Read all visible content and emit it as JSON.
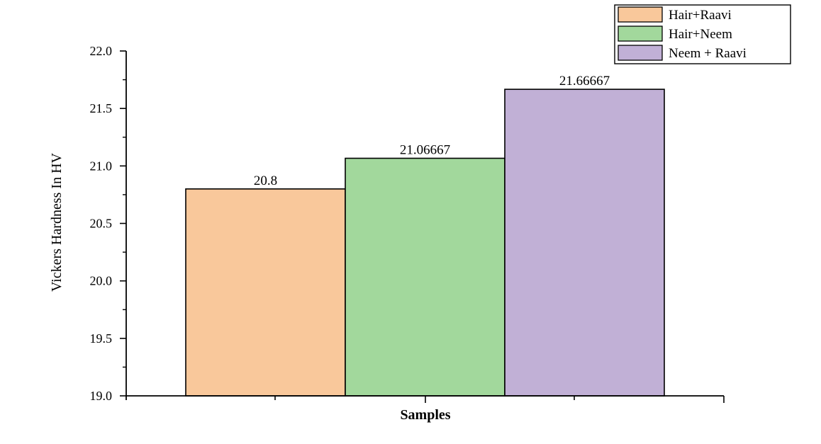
{
  "chart_data": {
    "type": "bar",
    "title": "",
    "xlabel": "Samples",
    "ylabel": "Vickers Hardness In HV",
    "ylim": [
      19.0,
      22.0
    ],
    "yticks": [
      "19.0",
      "19.5",
      "20.0",
      "20.5",
      "21.0",
      "21.5",
      "22.0"
    ],
    "grid": false,
    "legend_position": "top-right",
    "series": [
      {
        "name": "Hair+Raavi",
        "value": 20.8,
        "label": "20.8",
        "color": "#f9c89b"
      },
      {
        "name": "Hair+Neem",
        "value": 21.06667,
        "label": "21.06667",
        "color": "#a2d89c"
      },
      {
        "name": "Neem + Raavi",
        "value": 21.66667,
        "label": "21.66667",
        "color": "#c1b0d6"
      }
    ]
  }
}
